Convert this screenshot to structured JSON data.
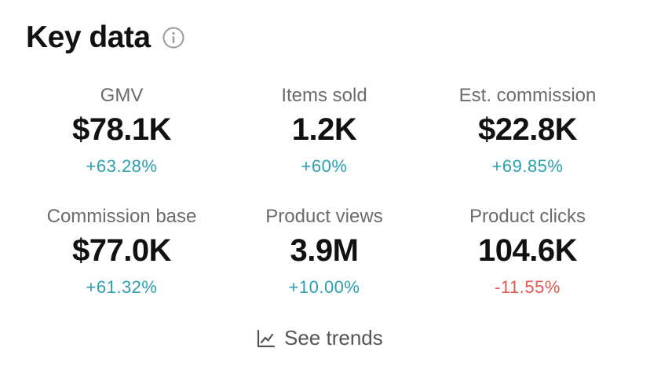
{
  "header": {
    "title": "Key data",
    "info_icon": "info-icon"
  },
  "metrics": [
    {
      "label": "GMV",
      "value": "$78.1K",
      "change": "+63.28%",
      "trend": "up"
    },
    {
      "label": "Items sold",
      "value": "1.2K",
      "change": "+60%",
      "trend": "up"
    },
    {
      "label": "Est. commission",
      "value": "$22.8K",
      "change": "+69.85%",
      "trend": "up"
    },
    {
      "label": "Commission base",
      "value": "$77.0K",
      "change": "+61.32%",
      "trend": "up"
    },
    {
      "label": "Product views",
      "value": "3.9M",
      "change": "+10.00%",
      "trend": "up"
    },
    {
      "label": "Product clicks",
      "value": "104.6K",
      "change": "-11.55%",
      "trend": "down"
    }
  ],
  "footer": {
    "trends_label": "See trends",
    "trends_icon": "line-chart-icon"
  },
  "colors": {
    "positive": "#2a9fb0",
    "negative": "#e0584e",
    "text_primary": "#111111",
    "text_secondary": "#6b6b6b"
  }
}
